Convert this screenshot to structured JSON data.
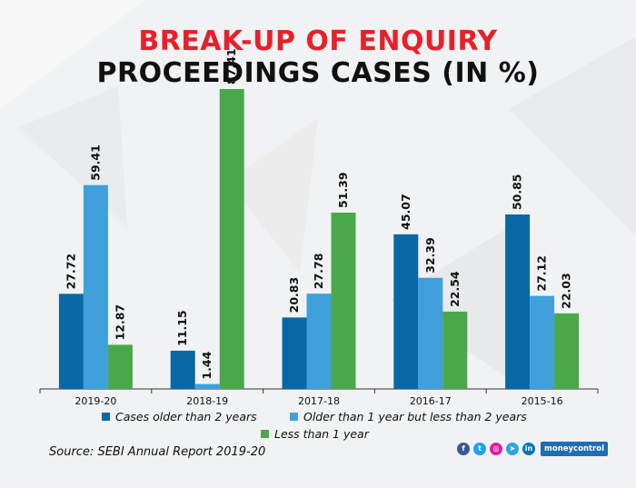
{
  "title_line1": "BREAK-UP OF ENQUIRY",
  "title_line2": "PROCEEDINGS CASES (IN %)",
  "source": "Source: SEBI Annual Report 2019-20",
  "brand": "moneycontrol",
  "social_icons": [
    "facebook-icon",
    "twitter-icon",
    "instagram-icon",
    "telegram-icon",
    "linkedin-icon"
  ],
  "colors": {
    "title_accent": "#e8202a",
    "series_1": "#0a67a6",
    "series_2": "#3fa0dc",
    "series_3": "#4aa84a"
  },
  "chart_data": {
    "type": "bar",
    "title": "BREAK-UP OF ENQUIRY PROCEEDINGS CASES (IN %)",
    "categories": [
      "2019-20",
      "2018-19",
      "2017-18",
      "2016-17",
      "2015-16"
    ],
    "series": [
      {
        "name": "Cases older than 2 years",
        "color": "#0a67a6",
        "values": [
          27.72,
          11.15,
          20.83,
          45.07,
          50.85
        ]
      },
      {
        "name": "Older than 1 year but less than 2 years",
        "color": "#3fa0dc",
        "values": [
          59.41,
          1.44,
          27.78,
          32.39,
          27.12
        ]
      },
      {
        "name": "Less than 1 year",
        "color": "#4aa84a",
        "values": [
          12.87,
          87.41,
          51.39,
          22.54,
          22.03
        ]
      }
    ],
    "labels": [
      [
        "27.72",
        "11.15",
        "20.83",
        "45.07",
        "50.85"
      ],
      [
        "59.41",
        "1.44",
        "27.78",
        "32.39",
        "27.12"
      ],
      [
        "12.87",
        "87.41",
        "51.39",
        "22.54",
        "22.03"
      ]
    ],
    "ylim": [
      0,
      87.41
    ],
    "grid": false,
    "legend_position": "bottom"
  }
}
